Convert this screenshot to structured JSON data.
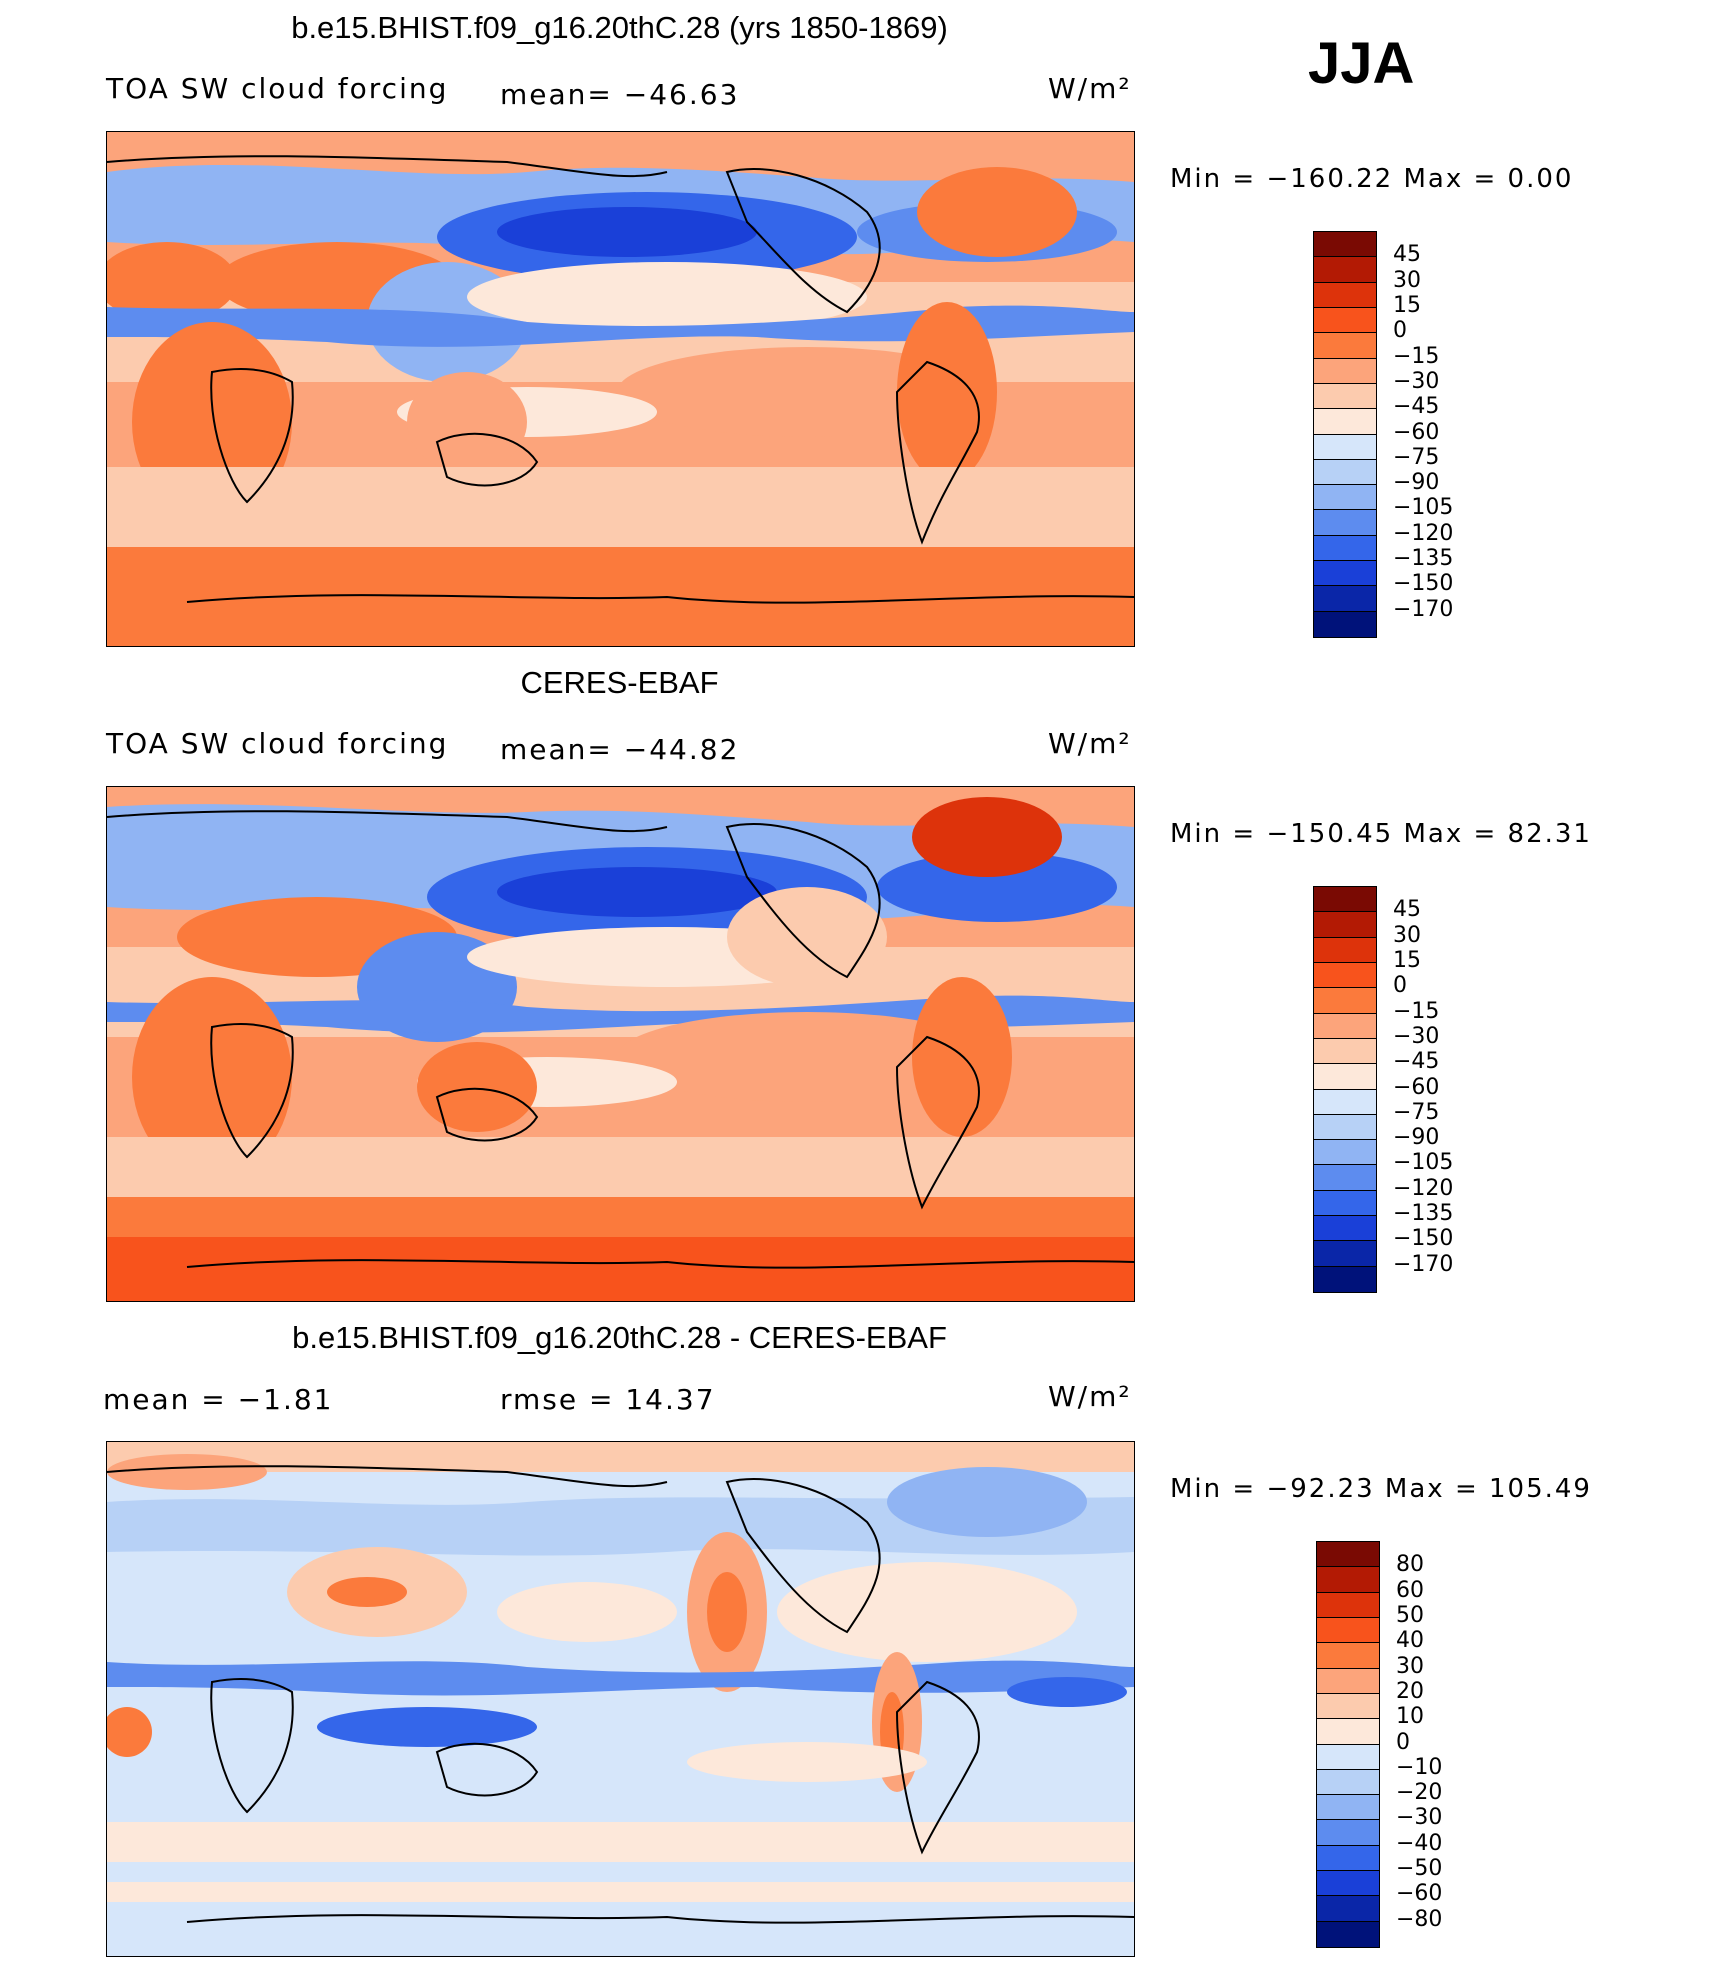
{
  "season": "JJA",
  "units": "W/m²",
  "panels": [
    {
      "id": "model",
      "title": "b.e15.BHIST.f09_g16.20thC.28 (yrs 1850-1869)",
      "left_label": "TOA SW cloud forcing",
      "center_label": "mean=  −46.63",
      "minmax": "Min  =  −160.22  Max  =     0.00",
      "colorbar": {
        "colors": [
          "#7a0a03",
          "#b31a04",
          "#dd330b",
          "#f8531c",
          "#fb7a3c",
          "#fca47b",
          "#fccbae",
          "#fde8da",
          "#d6e6fa",
          "#b7d1f6",
          "#90b4f3",
          "#5d8cef",
          "#3466ea",
          "#1a40d8",
          "#0a26a8",
          "#00127a"
        ],
        "labels": [
          "45",
          "30",
          "15",
          "0",
          "−15",
          "−30",
          "−45",
          "−60",
          "−75",
          "−90",
          "−105",
          "−120",
          "−135",
          "−150",
          "−170"
        ]
      }
    },
    {
      "id": "obs",
      "title": "CERES-EBAF",
      "left_label": "TOA SW cloud forcing",
      "center_label": "mean=  −44.82",
      "minmax": "Min  =  −150.45  Max  =   82.31",
      "colorbar": {
        "colors": [
          "#7a0a03",
          "#b31a04",
          "#dd330b",
          "#f8531c",
          "#fb7a3c",
          "#fca47b",
          "#fccbae",
          "#fde8da",
          "#d6e6fa",
          "#b7d1f6",
          "#90b4f3",
          "#5d8cef",
          "#3466ea",
          "#1a40d8",
          "#0a26a8",
          "#00127a"
        ],
        "labels": [
          "45",
          "30",
          "15",
          "0",
          "−15",
          "−30",
          "−45",
          "−60",
          "−75",
          "−90",
          "−105",
          "−120",
          "−135",
          "−150",
          "−170"
        ]
      }
    },
    {
      "id": "diff",
      "title": "b.e15.BHIST.f09_g16.20thC.28 - CERES-EBAF",
      "left_label": "mean  =    −1.81",
      "center_label": "rmse  =    14.37",
      "minmax": "Min  =  −92.23  Max  =  105.49",
      "colorbar": {
        "colors": [
          "#7a0a03",
          "#b31a04",
          "#dd330b",
          "#f8531c",
          "#fb7a3c",
          "#fca47b",
          "#fccbae",
          "#fde8da",
          "#d6e6fa",
          "#b7d1f6",
          "#90b4f3",
          "#5d8cef",
          "#3466ea",
          "#1a40d8",
          "#0a26a8",
          "#00127a"
        ],
        "labels": [
          "80",
          "60",
          "50",
          "40",
          "30",
          "20",
          "10",
          "0",
          "−10",
          "−20",
          "−30",
          "−40",
          "−50",
          "−60",
          "−80"
        ]
      }
    }
  ]
}
